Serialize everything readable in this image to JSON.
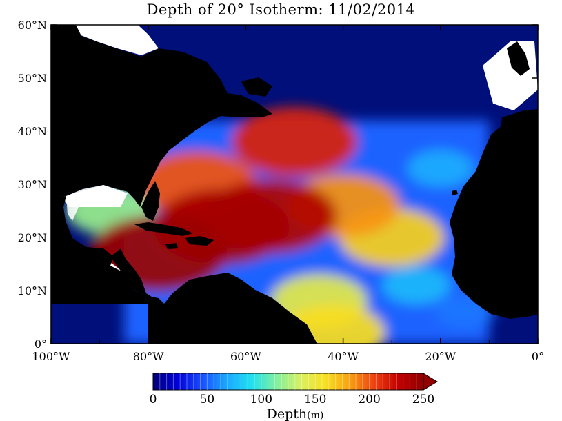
{
  "title": "Depth of 20° Isotherm: 11/02/2014",
  "colorbar": {
    "title_main": "Depth",
    "title_unit": "(m)",
    "min": 0,
    "max": 250,
    "tick_labels": [
      "0",
      "50",
      "100",
      "150",
      "200",
      "250"
    ],
    "tick_values": [
      0,
      50,
      100,
      150,
      200,
      250
    ],
    "extend": "max",
    "stops": [
      "#00007a",
      "#0000d8",
      "#1a50ff",
      "#1aa8ff",
      "#20e0f0",
      "#80f0a0",
      "#d8f060",
      "#f8e020",
      "#f8a010",
      "#f04010",
      "#c00000",
      "#900000"
    ]
  },
  "map_axes": {
    "lon_range": [
      -100,
      0
    ],
    "lat_range": [
      0,
      60
    ],
    "lon_tick_labels": [
      "100°W",
      "80°W",
      "60°W",
      "40°W",
      "20°W",
      "0°"
    ],
    "lon_tick_values": [
      -100,
      -80,
      -60,
      -40,
      -20,
      0
    ],
    "lat_tick_labels": [
      "0°",
      "10°N",
      "20°N",
      "30°N",
      "40°N",
      "50°N",
      "60°N"
    ],
    "lat_tick_values": [
      0,
      10,
      20,
      30,
      40,
      50,
      60
    ]
  },
  "colors": {
    "land": "#000000",
    "no_data": "#ffffff",
    "cold_water": "#000f7a"
  },
  "field": {
    "base_depth": 50,
    "hotspots": [
      {
        "lon": -65,
        "lat": 22,
        "depth": 240
      },
      {
        "lon": -55,
        "lat": 24,
        "depth": 235
      },
      {
        "lon": -78,
        "lat": 17,
        "depth": 245
      },
      {
        "lon": -70,
        "lat": 30,
        "depth": 200
      },
      {
        "lon": -50,
        "lat": 38,
        "depth": 215
      },
      {
        "lon": -40,
        "lat": 26,
        "depth": 185
      },
      {
        "lon": -30,
        "lat": 20,
        "depth": 165
      },
      {
        "lon": -45,
        "lat": 8,
        "depth": 145
      },
      {
        "lon": -42,
        "lat": 2,
        "depth": 160
      },
      {
        "lon": -25,
        "lat": 11,
        "depth": 75
      },
      {
        "lon": -15,
        "lat": 6,
        "depth": 55
      },
      {
        "lon": -20,
        "lat": 33,
        "depth": 70
      },
      {
        "lon": -88,
        "lat": 25,
        "depth": 120
      }
    ]
  }
}
